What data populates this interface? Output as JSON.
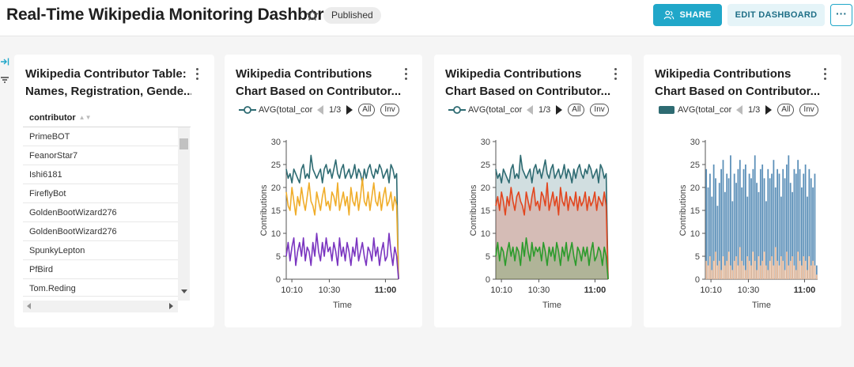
{
  "header": {
    "title": "Real-Time Wikipedia Monitoring Dashbord",
    "status_badge": "Published",
    "share_label": "SHARE",
    "edit_label": "EDIT DASHBOARD",
    "more_label": "···"
  },
  "table_card": {
    "title_line1": "Wikipedia Contributor Table:",
    "title_line2": "Names, Registration, Gende...",
    "column_header": "contributor",
    "rows": [
      "PrimeBOT",
      "FeanorStar7",
      "Ishi6181",
      "FireflyBot",
      "GoldenBootWizard276",
      "GoldenBootWizard276",
      "SpunkyLepton",
      "PfBird",
      "Tom.Reding"
    ]
  },
  "charts": [
    {
      "title_line1": "Wikipedia Contributions",
      "title_line2": "Chart Based on Contributor...",
      "legend_name": "AVG(total_cor",
      "page": "1/3",
      "all_label": "All",
      "inv_label": "Inv",
      "ylabel": "Contributions",
      "xlabel": "Time",
      "yticks": [
        "0",
        "5",
        "10",
        "15",
        "20",
        "25",
        "30"
      ],
      "xticks": [
        "10:10",
        "10:30",
        "11:00"
      ]
    },
    {
      "title_line1": "Wikipedia Contributions",
      "title_line2": "Chart Based on Contributor...",
      "legend_name": "AVG(total_cor",
      "page": "1/3",
      "all_label": "All",
      "inv_label": "Inv",
      "ylabel": "Contributions",
      "xlabel": "Time",
      "yticks": [
        "0",
        "5",
        "10",
        "15",
        "20",
        "25",
        "30"
      ],
      "xticks": [
        "10:10",
        "10:30",
        "11:00"
      ]
    },
    {
      "title_line1": "Wikipedia Contributions",
      "title_line2": "Chart Based on Contributor...",
      "legend_name": "AVG(total_cor",
      "page": "1/3",
      "all_label": "All",
      "inv_label": "Inv",
      "ylabel": "Contributions",
      "xlabel": "Time",
      "yticks": [
        "0",
        "5",
        "10",
        "15",
        "20",
        "25",
        "30"
      ],
      "xticks": [
        "10:10",
        "10:30",
        "11:00"
      ]
    }
  ],
  "colors": {
    "accent": "#20a7c9",
    "teal": "#2e6b72",
    "orange": "#f0ad2a",
    "purple": "#7a35c0",
    "red": "#e2461f",
    "green": "#2c9b2c",
    "bar_blue": "#5b8fb8",
    "bar_peach": "#e8bb9b"
  },
  "chart_data": [
    {
      "type": "line",
      "title": "Wikipedia Contributions Chart Based on Contributor...",
      "xlabel": "Time",
      "ylabel": "Contributions",
      "ylim": [
        0,
        30
      ],
      "x_range": [
        "10:07",
        "11:07"
      ],
      "legend": "top",
      "series": [
        {
          "name": "AVG(total_cor",
          "color": "#2e6b72",
          "values": [
            24,
            22,
            23,
            21,
            24,
            23,
            22,
            21,
            24,
            25,
            22,
            23,
            22,
            27,
            24,
            23,
            22,
            23,
            24,
            21,
            24,
            25,
            23,
            24,
            22,
            24,
            26,
            23,
            22,
            24,
            25,
            22,
            23,
            24,
            22,
            23,
            25,
            22,
            24,
            23,
            21,
            24,
            22,
            24,
            25,
            23,
            22,
            24,
            23,
            25,
            24,
            22,
            23,
            24,
            21,
            25,
            24,
            22,
            23,
            0
          ]
        },
        {
          "color": "#f0ad2a",
          "values": [
            19,
            16,
            15,
            20,
            17,
            14,
            18,
            16,
            20,
            17,
            15,
            18,
            21,
            17,
            16,
            14,
            19,
            17,
            15,
            18,
            20,
            16,
            17,
            15,
            19,
            18,
            16,
            21,
            15,
            17,
            19,
            16,
            18,
            14,
            20,
            17,
            16,
            19,
            15,
            18,
            22,
            17,
            16,
            19,
            15,
            18,
            21,
            17,
            16,
            19,
            15,
            18,
            20,
            16,
            17,
            19,
            15,
            18,
            16,
            0
          ]
        },
        {
          "color": "#7a35c0",
          "values": [
            5,
            8,
            4,
            7,
            9,
            3,
            6,
            8,
            5,
            9,
            4,
            7,
            6,
            3,
            8,
            5,
            10,
            6,
            4,
            8,
            5,
            9,
            6,
            7,
            4,
            8,
            6,
            3,
            9,
            5,
            7,
            4,
            8,
            6,
            3,
            7,
            5,
            9,
            4,
            6,
            8,
            5,
            3,
            7,
            6,
            4,
            9,
            5,
            7,
            3,
            6,
            8,
            4,
            5,
            10,
            6,
            3,
            7,
            5,
            0
          ]
        }
      ]
    },
    {
      "type": "area",
      "title": "Wikipedia Contributions Chart Based on Contributor...",
      "xlabel": "Time",
      "ylabel": "Contributions",
      "ylim": [
        0,
        30
      ],
      "x_range": [
        "10:07",
        "11:07"
      ],
      "legend": "top",
      "series": [
        {
          "name": "AVG(total_cor",
          "color": "#2e6b72",
          "values": [
            24,
            22,
            23,
            21,
            24,
            23,
            22,
            21,
            24,
            25,
            22,
            23,
            22,
            27,
            24,
            23,
            22,
            23,
            24,
            21,
            24,
            25,
            23,
            24,
            22,
            24,
            26,
            23,
            22,
            24,
            25,
            22,
            23,
            24,
            22,
            23,
            25,
            22,
            24,
            23,
            21,
            24,
            22,
            24,
            25,
            23,
            22,
            24,
            23,
            25,
            24,
            22,
            23,
            24,
            21,
            25,
            24,
            22,
            23,
            0
          ]
        },
        {
          "color": "#e2461f",
          "values": [
            16,
            18,
            15,
            19,
            17,
            14,
            18,
            16,
            20,
            17,
            15,
            18,
            19,
            17,
            16,
            14,
            19,
            17,
            15,
            18,
            20,
            16,
            17,
            15,
            19,
            18,
            16,
            21,
            15,
            17,
            19,
            16,
            18,
            14,
            20,
            17,
            16,
            19,
            15,
            18,
            17,
            16,
            19,
            15,
            18,
            16,
            17,
            19,
            15,
            18,
            16,
            17,
            19,
            15,
            18,
            17,
            16,
            19,
            16,
            0
          ]
        },
        {
          "color": "#2c9b2c",
          "values": [
            5,
            8,
            4,
            7,
            6,
            3,
            6,
            8,
            5,
            7,
            4,
            7,
            6,
            3,
            8,
            5,
            9,
            6,
            4,
            8,
            5,
            7,
            6,
            7,
            4,
            8,
            6,
            3,
            7,
            5,
            7,
            4,
            8,
            6,
            3,
            7,
            5,
            8,
            4,
            6,
            8,
            5,
            3,
            7,
            6,
            4,
            7,
            5,
            7,
            3,
            6,
            8,
            4,
            5,
            7,
            6,
            3,
            7,
            5,
            0
          ]
        }
      ]
    },
    {
      "type": "bar",
      "title": "Wikipedia Contributions Chart Based on Contributor...",
      "xlabel": "Time",
      "ylabel": "Contributions",
      "ylim": [
        0,
        30
      ],
      "x_range": [
        "10:07",
        "11:07"
      ],
      "legend": "top",
      "series": [
        {
          "name": "AVG(total_cor",
          "color": "#5b8fb8",
          "values": [
            24,
            20,
            23,
            18,
            25,
            22,
            16,
            21,
            24,
            26,
            19,
            23,
            22,
            27,
            17,
            23,
            21,
            24,
            26,
            20,
            24,
            25,
            18,
            23,
            22,
            24,
            27,
            21,
            19,
            24,
            25,
            22,
            17,
            24,
            22,
            23,
            26,
            20,
            24,
            23,
            18,
            24,
            22,
            25,
            27,
            21,
            19,
            24,
            23,
            26,
            24,
            20,
            23,
            25,
            18,
            24,
            22,
            20,
            23,
            3
          ]
        },
        {
          "color": "#e8bb9b",
          "values": [
            4,
            3,
            5,
            2,
            4,
            6,
            3,
            4,
            2,
            5,
            3,
            4,
            6,
            3,
            2,
            4,
            5,
            3,
            7,
            4,
            3,
            2,
            5,
            4,
            3,
            6,
            4,
            2,
            5,
            3,
            4,
            6,
            3,
            2,
            4,
            5,
            3,
            7,
            4,
            3,
            5,
            4,
            2,
            6,
            3,
            4,
            5,
            3,
            2,
            6,
            4,
            3,
            5,
            4,
            2,
            5,
            3,
            4,
            3,
            1
          ]
        }
      ]
    }
  ]
}
